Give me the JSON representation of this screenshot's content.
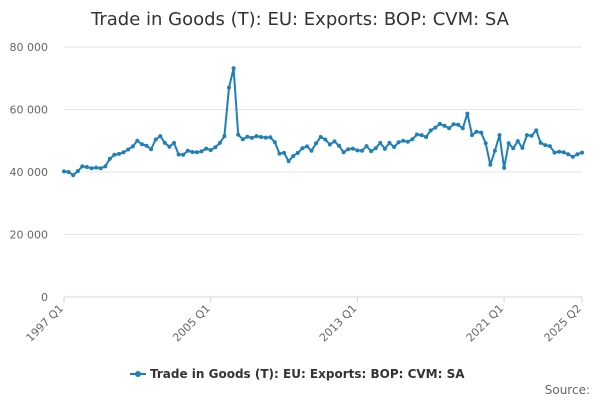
{
  "chart_data": {
    "type": "line",
    "title": "Trade in Goods (T): EU: Exports: BOP: CVM: SA",
    "xlabel": "",
    "ylabel": "",
    "ylim": [
      0,
      80000
    ],
    "yticks": [
      {
        "value": 0,
        "label": "0"
      },
      {
        "value": 20000,
        "label": "20 000"
      },
      {
        "value": 40000,
        "label": "40 000"
      },
      {
        "value": 60000,
        "label": "60 000"
      },
      {
        "value": 80000,
        "label": "80 000"
      }
    ],
    "xticks": [
      "1997 Q1",
      "2005 Q1",
      "2013 Q1",
      "2021 Q1",
      "2025 Q2"
    ],
    "grid": "horizontal",
    "legend_position": "bottom",
    "color": "#1f7fb7",
    "source_label": "Source:",
    "series": [
      {
        "name": "Trade in Goods (T): EU: Exports: BOP: CVM: SA",
        "points": [
          [
            "1997 Q1",
            40200
          ],
          [
            "1997 Q2",
            40000
          ],
          [
            "1997 Q3",
            39000
          ],
          [
            "1997 Q4",
            40300
          ],
          [
            "1998 Q1",
            41800
          ],
          [
            "1998 Q2",
            41600
          ],
          [
            "1998 Q3",
            41200
          ],
          [
            "1998 Q4",
            41400
          ],
          [
            "1999 Q1",
            41200
          ],
          [
            "1999 Q2",
            41800
          ],
          [
            "1999 Q3",
            44200
          ],
          [
            "1999 Q4",
            45500
          ],
          [
            "2000 Q1",
            45800
          ],
          [
            "2000 Q2",
            46300
          ],
          [
            "2000 Q3",
            47200
          ],
          [
            "2000 Q4",
            48200
          ],
          [
            "2001 Q1",
            50000
          ],
          [
            "2001 Q2",
            48900
          ],
          [
            "2001 Q3",
            48400
          ],
          [
            "2001 Q4",
            47300
          ],
          [
            "2002 Q1",
            50400
          ],
          [
            "2002 Q2",
            51500
          ],
          [
            "2002 Q3",
            49300
          ],
          [
            "2002 Q4",
            48100
          ],
          [
            "2003 Q1",
            49300
          ],
          [
            "2003 Q2",
            45600
          ],
          [
            "2003 Q3",
            45500
          ],
          [
            "2003 Q4",
            46800
          ],
          [
            "2004 Q1",
            46400
          ],
          [
            "2004 Q2",
            46300
          ],
          [
            "2004 Q3",
            46600
          ],
          [
            "2004 Q4",
            47500
          ],
          [
            "2005 Q1",
            47000
          ],
          [
            "2005 Q2",
            47900
          ],
          [
            "2005 Q3",
            49300
          ],
          [
            "2005 Q4",
            51500
          ],
          [
            "2006 Q1",
            67000
          ],
          [
            "2006 Q2",
            73200
          ],
          [
            "2006 Q3",
            51900
          ],
          [
            "2006 Q4",
            50500
          ],
          [
            "2007 Q1",
            51300
          ],
          [
            "2007 Q2",
            50900
          ],
          [
            "2007 Q3",
            51500
          ],
          [
            "2007 Q4",
            51200
          ],
          [
            "2008 Q1",
            51000
          ],
          [
            "2008 Q2",
            51100
          ],
          [
            "2008 Q3",
            49500
          ],
          [
            "2008 Q4",
            45900
          ],
          [
            "2009 Q1",
            46100
          ],
          [
            "2009 Q2",
            43500
          ],
          [
            "2009 Q3",
            45100
          ],
          [
            "2009 Q4",
            46100
          ],
          [
            "2010 Q1",
            47600
          ],
          [
            "2010 Q2",
            48200
          ],
          [
            "2010 Q3",
            46800
          ],
          [
            "2010 Q4",
            49200
          ],
          [
            "2011 Q1",
            51200
          ],
          [
            "2011 Q2",
            50400
          ],
          [
            "2011 Q3",
            48800
          ],
          [
            "2011 Q4",
            49800
          ],
          [
            "2012 Q1",
            48400
          ],
          [
            "2012 Q2",
            46300
          ],
          [
            "2012 Q3",
            47300
          ],
          [
            "2012 Q4",
            47500
          ],
          [
            "2013 Q1",
            46900
          ],
          [
            "2013 Q2",
            46800
          ],
          [
            "2013 Q3",
            48300
          ],
          [
            "2013 Q4",
            46700
          ],
          [
            "2014 Q1",
            47600
          ],
          [
            "2014 Q2",
            49300
          ],
          [
            "2014 Q3",
            47400
          ],
          [
            "2014 Q4",
            49300
          ],
          [
            "2015 Q1",
            48000
          ],
          [
            "2015 Q2",
            49500
          ],
          [
            "2015 Q3",
            50000
          ],
          [
            "2015 Q4",
            49700
          ],
          [
            "2016 Q1",
            50500
          ],
          [
            "2016 Q2",
            52000
          ],
          [
            "2016 Q3",
            51800
          ],
          [
            "2016 Q4",
            51200
          ],
          [
            "2017 Q1",
            53300
          ],
          [
            "2017 Q2",
            54200
          ],
          [
            "2017 Q3",
            55400
          ],
          [
            "2017 Q4",
            54800
          ],
          [
            "2018 Q1",
            54000
          ],
          [
            "2018 Q2",
            55300
          ],
          [
            "2018 Q3",
            55100
          ],
          [
            "2018 Q4",
            54000
          ],
          [
            "2019 Q1",
            58700
          ],
          [
            "2019 Q2",
            51800
          ],
          [
            "2019 Q3",
            52900
          ],
          [
            "2019 Q4",
            52600
          ],
          [
            "2020 Q1",
            49200
          ],
          [
            "2020 Q2",
            42300
          ],
          [
            "2020 Q3",
            46800
          ],
          [
            "2020 Q4",
            51800
          ],
          [
            "2021 Q1",
            41300
          ],
          [
            "2021 Q2",
            49200
          ],
          [
            "2021 Q3",
            47600
          ],
          [
            "2021 Q4",
            49900
          ],
          [
            "2022 Q1",
            47700
          ],
          [
            "2022 Q2",
            51800
          ],
          [
            "2022 Q3",
            51600
          ],
          [
            "2022 Q4",
            53300
          ],
          [
            "2023 Q1",
            49300
          ],
          [
            "2023 Q2",
            48600
          ],
          [
            "2023 Q3",
            48300
          ],
          [
            "2023 Q4",
            46200
          ],
          [
            "2024 Q1",
            46500
          ],
          [
            "2024 Q2",
            46300
          ],
          [
            "2024 Q3",
            45700
          ],
          [
            "2024 Q4",
            44900
          ],
          [
            "2025 Q1",
            45700
          ],
          [
            "2025 Q2",
            46200
          ]
        ]
      }
    ]
  }
}
